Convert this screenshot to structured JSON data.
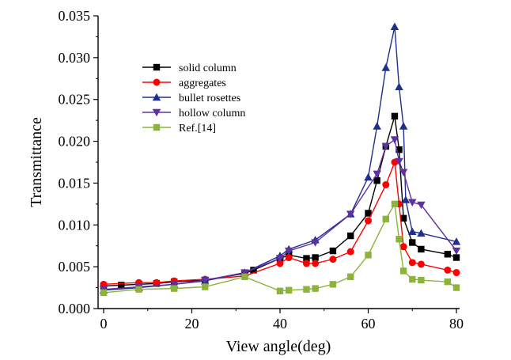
{
  "chart_data": {
    "type": "line",
    "title": "",
    "xlabel": "View angle(deg)",
    "ylabel": "Transmittance",
    "xlim": [
      -1,
      81
    ],
    "ylim": [
      0,
      0.035
    ],
    "xticks": [
      0,
      20,
      40,
      60,
      80
    ],
    "yticks": [
      "0.000",
      "0.005",
      "0.010",
      "0.015",
      "0.020",
      "0.025",
      "0.030",
      "0.035"
    ],
    "grid": false,
    "legend_position": "top-left",
    "series": [
      {
        "name": "solid column",
        "color": "#000000",
        "marker": "square",
        "points": [
          [
            0,
            0.0027
          ],
          [
            4,
            0.0028
          ],
          [
            8,
            0.0029
          ],
          [
            12,
            0.003
          ],
          [
            16,
            0.0032
          ],
          [
            23,
            0.0034
          ],
          [
            32,
            0.0042
          ],
          [
            34,
            0.0046
          ],
          [
            40,
            0.006
          ],
          [
            42,
            0.0064
          ],
          [
            46,
            0.006
          ],
          [
            48,
            0.0061
          ],
          [
            52,
            0.0069
          ],
          [
            56,
            0.0087
          ],
          [
            60,
            0.0114
          ],
          [
            62,
            0.0153
          ],
          [
            64,
            0.0194
          ],
          [
            66,
            0.023
          ],
          [
            67,
            0.019
          ],
          [
            68,
            0.0108
          ],
          [
            70,
            0.0079
          ],
          [
            72,
            0.0071
          ],
          [
            78,
            0.0065
          ],
          [
            80,
            0.0061
          ]
        ]
      },
      {
        "name": "aggregates",
        "color": "#ff0000",
        "marker": "circle",
        "points": [
          [
            0,
            0.0029
          ],
          [
            8,
            0.0031
          ],
          [
            12,
            0.0031
          ],
          [
            16,
            0.0033
          ],
          [
            23,
            0.0035
          ],
          [
            32,
            0.0039
          ],
          [
            40,
            0.0054
          ],
          [
            42,
            0.0061
          ],
          [
            46,
            0.0054
          ],
          [
            48,
            0.0054
          ],
          [
            52,
            0.0059
          ],
          [
            56,
            0.0068
          ],
          [
            60,
            0.0105
          ],
          [
            64,
            0.0148
          ],
          [
            66,
            0.0175
          ],
          [
            67,
            0.0125
          ],
          [
            68,
            0.0074
          ],
          [
            70,
            0.0055
          ],
          [
            72,
            0.0053
          ],
          [
            78,
            0.0046
          ],
          [
            80,
            0.0043
          ]
        ]
      },
      {
        "name": "bullet rosettes",
        "color": "#1f2f8f",
        "marker": "triangle-up",
        "points": [
          [
            0,
            0.0022
          ],
          [
            8,
            0.0025
          ],
          [
            16,
            0.0029
          ],
          [
            23,
            0.0033
          ],
          [
            32,
            0.0043
          ],
          [
            40,
            0.0063
          ],
          [
            42,
            0.0071
          ],
          [
            48,
            0.0082
          ],
          [
            56,
            0.0113
          ],
          [
            60,
            0.0157
          ],
          [
            62,
            0.0218
          ],
          [
            64,
            0.0288
          ],
          [
            66,
            0.0337
          ],
          [
            67,
            0.0265
          ],
          [
            68,
            0.0218
          ],
          [
            68.5,
            0.013
          ],
          [
            70,
            0.0092
          ],
          [
            72,
            0.009
          ],
          [
            80,
            0.008
          ]
        ]
      },
      {
        "name": "hollow column",
        "color": "#6030a0",
        "marker": "triangle-down",
        "points": [
          [
            0,
            0.0023
          ],
          [
            8,
            0.0026
          ],
          [
            16,
            0.0029
          ],
          [
            23,
            0.0034
          ],
          [
            32,
            0.0043
          ],
          [
            40,
            0.006
          ],
          [
            42,
            0.0069
          ],
          [
            48,
            0.0079
          ],
          [
            56,
            0.0113
          ],
          [
            62,
            0.0161
          ],
          [
            64,
            0.0194
          ],
          [
            66,
            0.0202
          ],
          [
            67,
            0.0176
          ],
          [
            68,
            0.0163
          ],
          [
            70,
            0.0127
          ],
          [
            72,
            0.0124
          ],
          [
            80,
            0.0069
          ]
        ]
      },
      {
        "name": "Ref.[14]",
        "color": "#8cb43a",
        "marker": "square",
        "points": [
          [
            0,
            0.0019
          ],
          [
            8,
            0.0023
          ],
          [
            16,
            0.0024
          ],
          [
            23,
            0.0026
          ],
          [
            32,
            0.0038
          ],
          [
            40,
            0.0021
          ],
          [
            42,
            0.0022
          ],
          [
            46,
            0.0023
          ],
          [
            48,
            0.0024
          ],
          [
            52,
            0.0029
          ],
          [
            56,
            0.0038
          ],
          [
            60,
            0.0064
          ],
          [
            64,
            0.0107
          ],
          [
            66,
            0.0125
          ],
          [
            67,
            0.0083
          ],
          [
            68,
            0.0045
          ],
          [
            70,
            0.0035
          ],
          [
            72,
            0.0034
          ],
          [
            78,
            0.0032
          ],
          [
            80,
            0.0025
          ]
        ]
      }
    ]
  }
}
